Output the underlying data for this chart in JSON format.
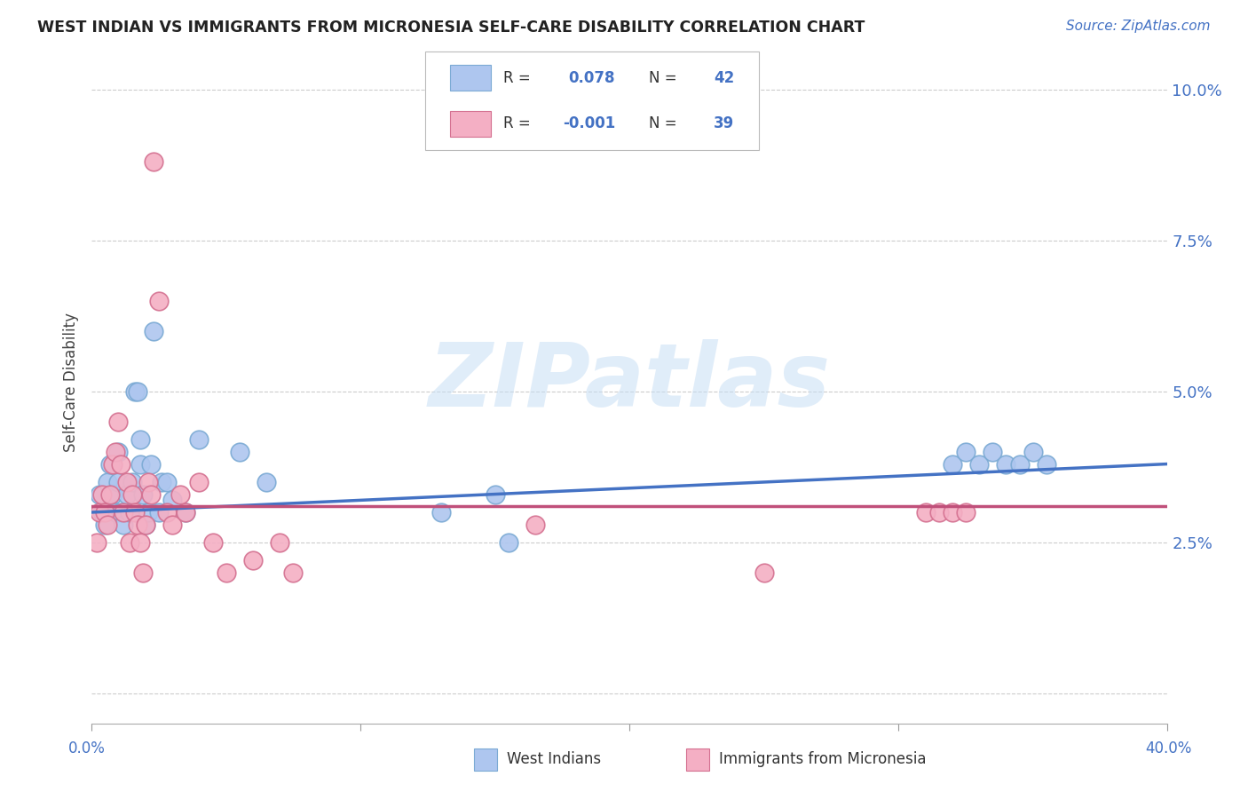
{
  "title": "WEST INDIAN VS IMMIGRANTS FROM MICRONESIA SELF-CARE DISABILITY CORRELATION CHART",
  "source": "Source: ZipAtlas.com",
  "ylabel": "Self-Care Disability",
  "xlim": [
    0.0,
    0.4
  ],
  "ylim": [
    -0.005,
    0.108
  ],
  "yticks": [
    0.0,
    0.025,
    0.05,
    0.075,
    0.1
  ],
  "ytick_labels": [
    "",
    "2.5%",
    "5.0%",
    "7.5%",
    "10.0%"
  ],
  "blue_line_color": "#4472c4",
  "pink_line_color": "#c0507a",
  "scatter_blue": "#aec6ef",
  "scatter_pink": "#f4afc4",
  "scatter_edge_blue": "#7baad4",
  "scatter_edge_pink": "#d47090",
  "watermark_text": "ZIPatlas",
  "background_color": "#ffffff",
  "grid_color": "#cccccc",
  "west_indian_x": [
    0.003,
    0.004,
    0.005,
    0.006,
    0.007,
    0.008,
    0.009,
    0.01,
    0.01,
    0.011,
    0.012,
    0.013,
    0.014,
    0.015,
    0.016,
    0.017,
    0.018,
    0.018,
    0.019,
    0.02,
    0.021,
    0.022,
    0.023,
    0.025,
    0.026,
    0.028,
    0.03,
    0.035,
    0.04,
    0.055,
    0.065,
    0.13,
    0.15,
    0.155,
    0.32,
    0.325,
    0.33,
    0.335,
    0.34,
    0.345,
    0.35,
    0.355
  ],
  "west_indian_y": [
    0.033,
    0.03,
    0.028,
    0.035,
    0.038,
    0.033,
    0.03,
    0.035,
    0.04,
    0.03,
    0.028,
    0.033,
    0.03,
    0.035,
    0.05,
    0.05,
    0.038,
    0.042,
    0.033,
    0.028,
    0.03,
    0.038,
    0.06,
    0.03,
    0.035,
    0.035,
    0.032,
    0.03,
    0.042,
    0.04,
    0.035,
    0.03,
    0.033,
    0.025,
    0.038,
    0.04,
    0.038,
    0.04,
    0.038,
    0.038,
    0.04,
    0.038
  ],
  "micronesia_x": [
    0.002,
    0.003,
    0.004,
    0.005,
    0.006,
    0.007,
    0.008,
    0.009,
    0.01,
    0.011,
    0.012,
    0.013,
    0.014,
    0.015,
    0.016,
    0.017,
    0.018,
    0.019,
    0.02,
    0.021,
    0.022,
    0.023,
    0.025,
    0.028,
    0.03,
    0.033,
    0.035,
    0.04,
    0.045,
    0.05,
    0.06,
    0.07,
    0.075,
    0.165,
    0.25,
    0.31,
    0.315,
    0.32,
    0.325
  ],
  "micronesia_y": [
    0.025,
    0.03,
    0.033,
    0.03,
    0.028,
    0.033,
    0.038,
    0.04,
    0.045,
    0.038,
    0.03,
    0.035,
    0.025,
    0.033,
    0.03,
    0.028,
    0.025,
    0.02,
    0.028,
    0.035,
    0.033,
    0.088,
    0.065,
    0.03,
    0.028,
    0.033,
    0.03,
    0.035,
    0.025,
    0.02,
    0.022,
    0.025,
    0.02,
    0.028,
    0.02,
    0.03,
    0.03,
    0.03,
    0.03
  ],
  "blue_trend_y0": 0.03,
  "blue_trend_y1": 0.038,
  "pink_trend_y0": 0.031,
  "pink_trend_y1": 0.031
}
